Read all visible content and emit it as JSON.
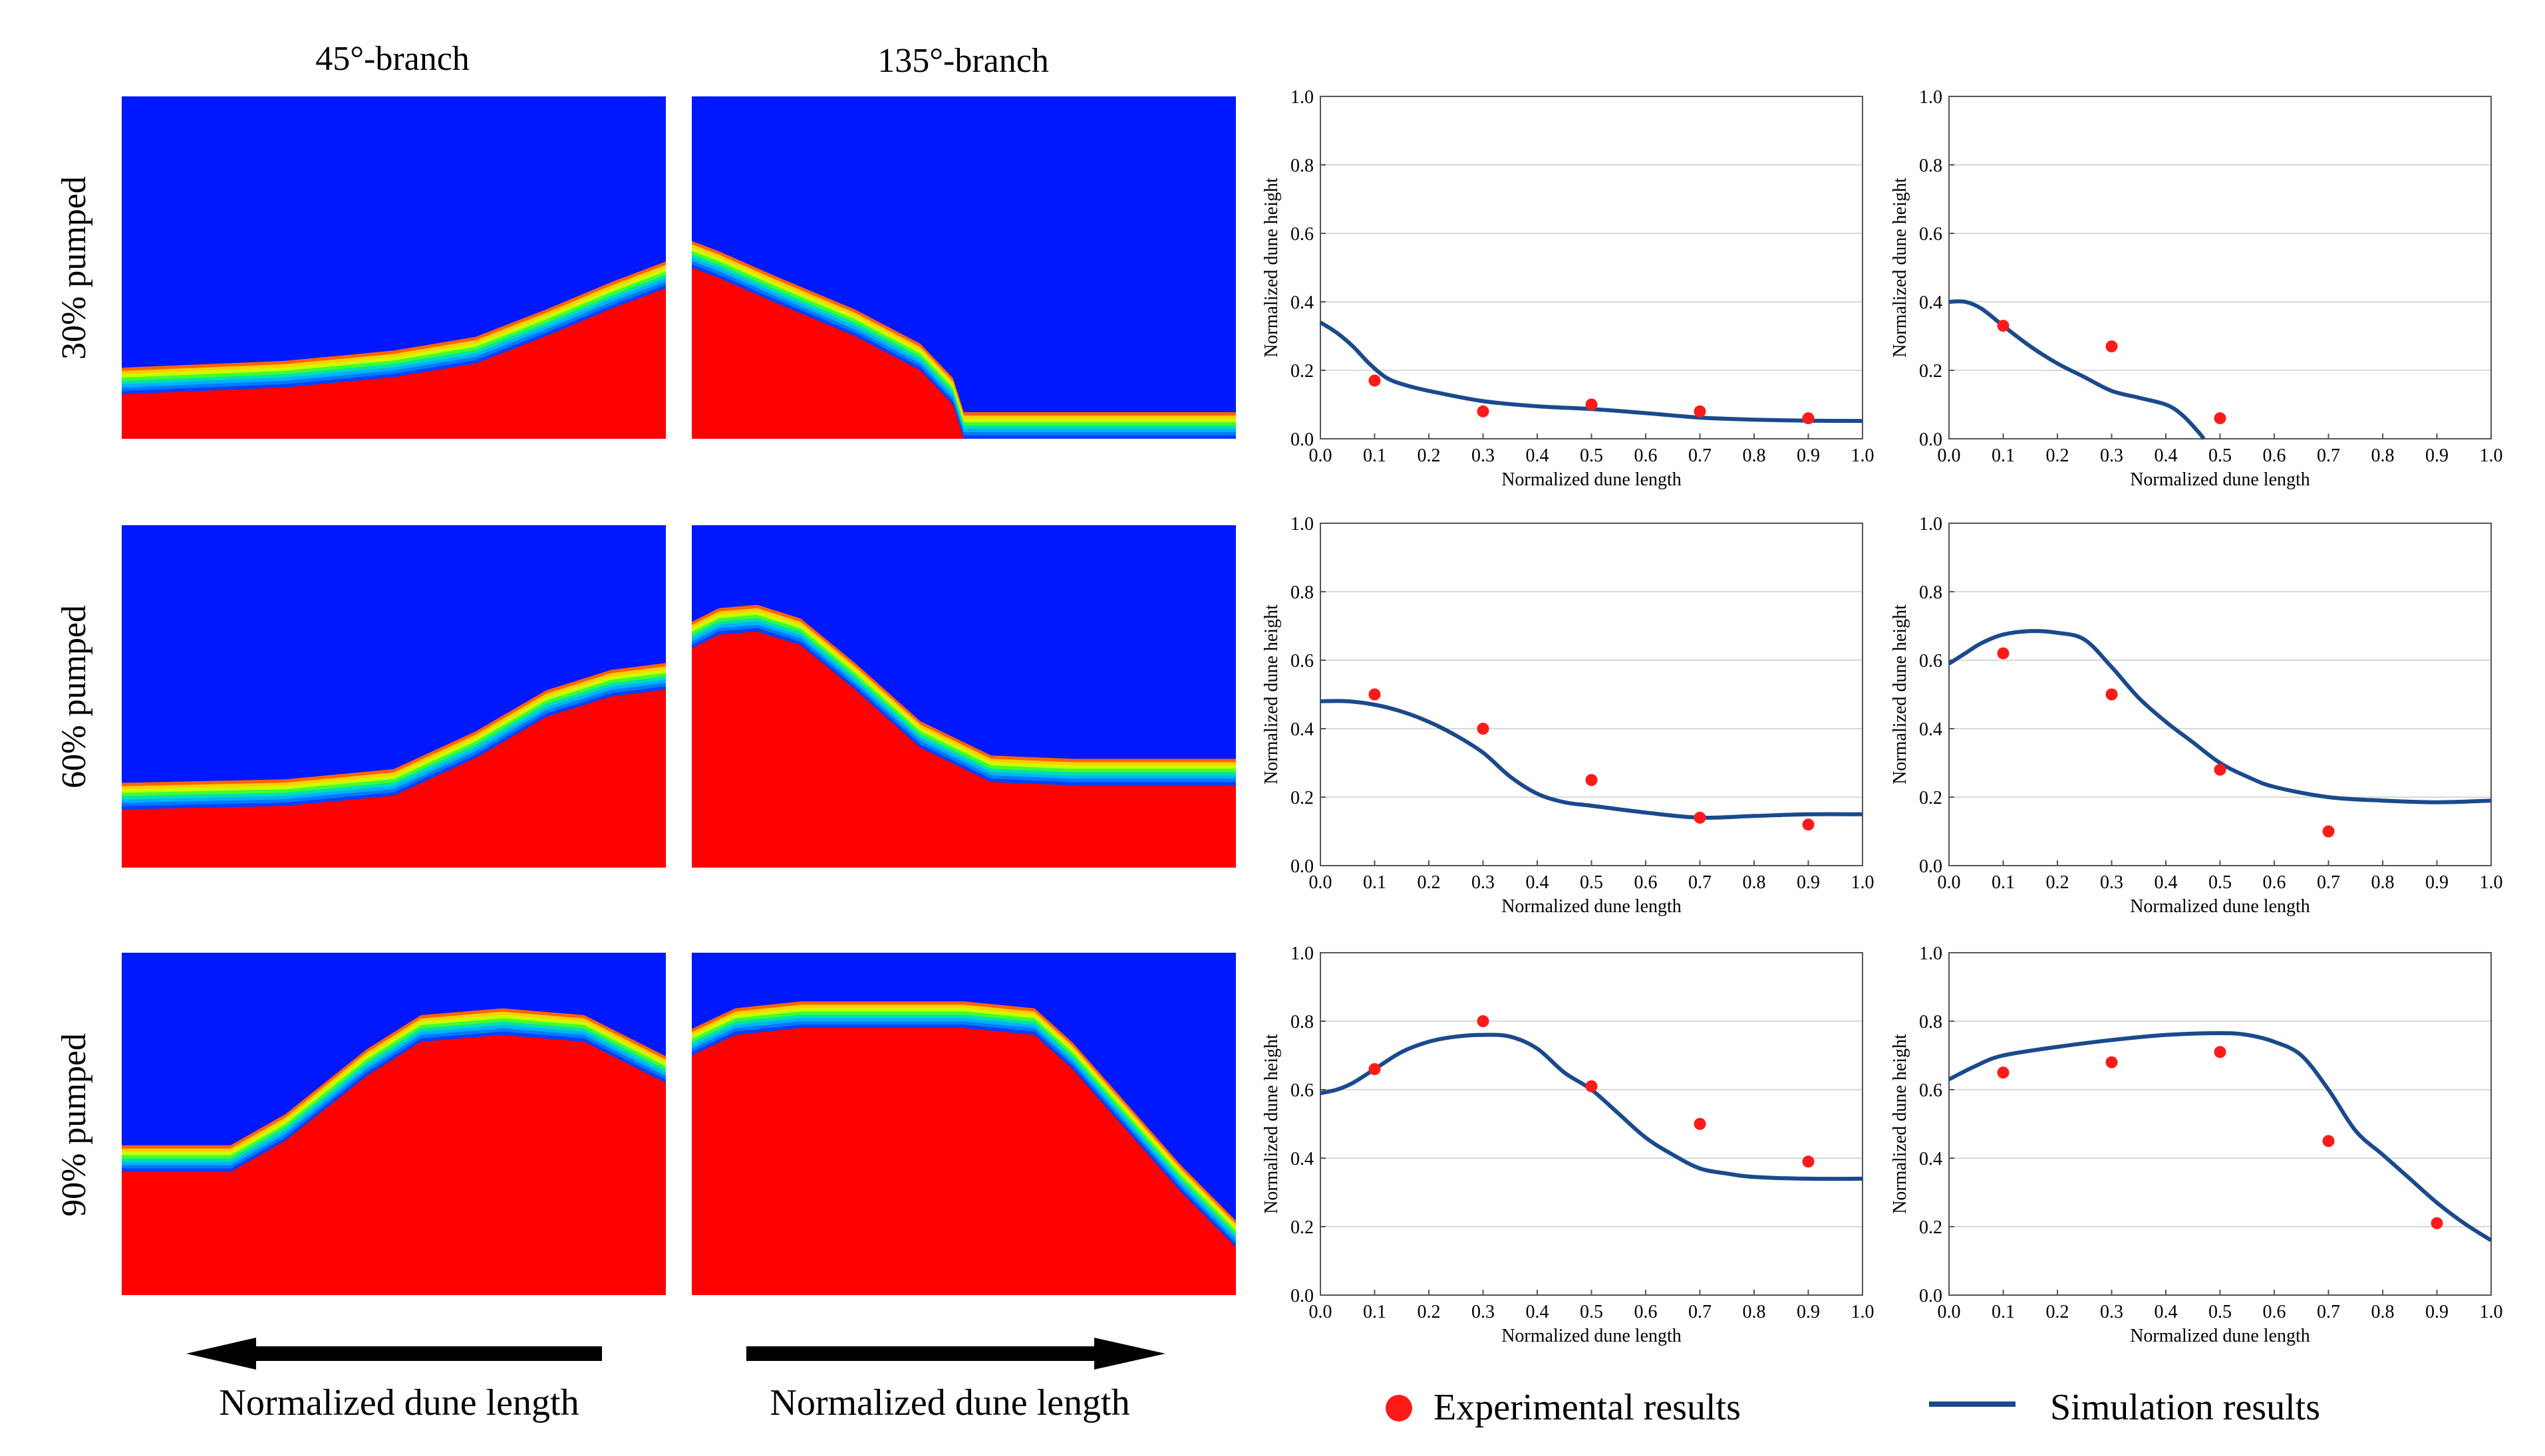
{
  "figure": {
    "column_headers": [
      "45°-branch",
      "135°-branch"
    ],
    "row_labels": [
      "30% pumped",
      "60% pumped",
      "90% pumped"
    ],
    "arrow_captions": [
      "Normalized dune length",
      "Normalized dune length"
    ],
    "arrow_directions": [
      "left",
      "right"
    ],
    "colors": {
      "sediment": "#ff0000",
      "water": "#0018ff",
      "interface": [
        "#ff6400",
        "#ffd000",
        "#c8ff00",
        "#40ff30",
        "#00e0b0",
        "#00b0ff",
        "#0078ff",
        "#0040ff"
      ],
      "experimental": "#ff1a1a",
      "simulation": "#1a4a8c",
      "grid": "#d9d9d9"
    },
    "legend": {
      "experimental": "Experimental results",
      "simulation": "Simulation results"
    }
  },
  "contour_profiles": [
    {
      "name": "45-30",
      "points": [
        [
          0,
          0.13
        ],
        [
          0.3,
          0.15
        ],
        [
          0.5,
          0.18
        ],
        [
          0.65,
          0.22
        ],
        [
          0.78,
          0.3
        ],
        [
          0.9,
          0.38
        ],
        [
          1,
          0.44
        ]
      ]
    },
    {
      "name": "135-30",
      "points": [
        [
          0,
          0.5
        ],
        [
          0.05,
          0.47
        ],
        [
          0.15,
          0.4
        ],
        [
          0.3,
          0.3
        ],
        [
          0.42,
          0.2
        ],
        [
          0.48,
          0.1
        ],
        [
          0.5,
          0.0
        ],
        [
          1,
          0.0
        ]
      ]
    },
    {
      "name": "45-60",
      "points": [
        [
          0,
          0.17
        ],
        [
          0.3,
          0.18
        ],
        [
          0.5,
          0.21
        ],
        [
          0.65,
          0.32
        ],
        [
          0.78,
          0.44
        ],
        [
          0.9,
          0.5
        ],
        [
          1,
          0.52
        ]
      ]
    },
    {
      "name": "135-60",
      "points": [
        [
          0,
          0.64
        ],
        [
          0.05,
          0.68
        ],
        [
          0.12,
          0.69
        ],
        [
          0.2,
          0.65
        ],
        [
          0.3,
          0.52
        ],
        [
          0.42,
          0.35
        ],
        [
          0.55,
          0.25
        ],
        [
          0.7,
          0.24
        ],
        [
          1,
          0.24
        ]
      ]
    },
    {
      "name": "45-90",
      "points": [
        [
          0,
          0.36
        ],
        [
          0.2,
          0.36
        ],
        [
          0.3,
          0.45
        ],
        [
          0.45,
          0.64
        ],
        [
          0.55,
          0.74
        ],
        [
          0.7,
          0.76
        ],
        [
          0.85,
          0.74
        ],
        [
          0.95,
          0.66
        ],
        [
          1,
          0.62
        ]
      ]
    },
    {
      "name": "135-90",
      "points": [
        [
          0,
          0.7
        ],
        [
          0.08,
          0.76
        ],
        [
          0.2,
          0.78
        ],
        [
          0.5,
          0.78
        ],
        [
          0.63,
          0.76
        ],
        [
          0.7,
          0.66
        ],
        [
          0.8,
          0.48
        ],
        [
          0.9,
          0.3
        ],
        [
          1,
          0.14
        ]
      ]
    }
  ],
  "chart_data": [
    {
      "type": "line",
      "name": "45-30",
      "xlabel": "Normalized dune length",
      "ylabel": "Normalized dune height",
      "xlim": [
        0,
        1
      ],
      "ylim": [
        0,
        1
      ],
      "xticks": [
        "0.0",
        "0.1",
        "0.2",
        "0.3",
        "0.4",
        "0.5",
        "0.6",
        "0.7",
        "0.8",
        "0.9",
        "1.0"
      ],
      "yticks": [
        "0.0",
        "0.2",
        "0.4",
        "0.6",
        "0.8",
        "1.0"
      ],
      "experimental": [
        [
          0.1,
          0.17
        ],
        [
          0.3,
          0.08
        ],
        [
          0.5,
          0.1
        ],
        [
          0.7,
          0.08
        ],
        [
          0.9,
          0.06
        ]
      ],
      "simulation": [
        [
          0,
          0.34
        ],
        [
          0.03,
          0.31
        ],
        [
          0.06,
          0.27
        ],
        [
          0.09,
          0.22
        ],
        [
          0.12,
          0.18
        ],
        [
          0.15,
          0.16
        ],
        [
          0.2,
          0.14
        ],
        [
          0.3,
          0.11
        ],
        [
          0.4,
          0.095
        ],
        [
          0.5,
          0.087
        ],
        [
          0.6,
          0.075
        ],
        [
          0.7,
          0.062
        ],
        [
          0.8,
          0.056
        ],
        [
          0.9,
          0.053
        ],
        [
          1,
          0.052
        ]
      ]
    },
    {
      "type": "line",
      "name": "135-30",
      "xlabel": "Normalized dune length",
      "ylabel": "Normalized dune height",
      "xlim": [
        0,
        1
      ],
      "ylim": [
        0,
        1
      ],
      "xticks": [
        "0.0",
        "0.1",
        "0.2",
        "0.3",
        "0.4",
        "0.5",
        "0.6",
        "0.7",
        "0.8",
        "0.9",
        "1.0"
      ],
      "yticks": [
        "0.0",
        "0.2",
        "0.4",
        "0.6",
        "0.8",
        "1.0"
      ],
      "experimental": [
        [
          0.1,
          0.33
        ],
        [
          0.3,
          0.27
        ],
        [
          0.5,
          0.06
        ]
      ],
      "simulation": [
        [
          0,
          0.4
        ],
        [
          0.03,
          0.4
        ],
        [
          0.06,
          0.38
        ],
        [
          0.1,
          0.33
        ],
        [
          0.15,
          0.27
        ],
        [
          0.2,
          0.22
        ],
        [
          0.25,
          0.18
        ],
        [
          0.3,
          0.14
        ],
        [
          0.35,
          0.12
        ],
        [
          0.4,
          0.1
        ],
        [
          0.43,
          0.07
        ],
        [
          0.46,
          0.02
        ],
        [
          0.47,
          0.0
        ]
      ]
    },
    {
      "type": "line",
      "name": "45-60",
      "xlabel": "Normalized dune length",
      "ylabel": "Normalized dune height",
      "xlim": [
        0,
        1
      ],
      "ylim": [
        0,
        1
      ],
      "xticks": [
        "0.0",
        "0.1",
        "0.2",
        "0.3",
        "0.4",
        "0.5",
        "0.6",
        "0.7",
        "0.8",
        "0.9",
        "1.0"
      ],
      "yticks": [
        "0.0",
        "0.2",
        "0.4",
        "0.6",
        "0.8",
        "1.0"
      ],
      "experimental": [
        [
          0.1,
          0.5
        ],
        [
          0.3,
          0.4
        ],
        [
          0.5,
          0.25
        ],
        [
          0.7,
          0.14
        ],
        [
          0.9,
          0.12
        ]
      ],
      "simulation": [
        [
          0,
          0.48
        ],
        [
          0.05,
          0.48
        ],
        [
          0.1,
          0.47
        ],
        [
          0.15,
          0.45
        ],
        [
          0.2,
          0.42
        ],
        [
          0.25,
          0.38
        ],
        [
          0.3,
          0.33
        ],
        [
          0.35,
          0.26
        ],
        [
          0.4,
          0.21
        ],
        [
          0.45,
          0.185
        ],
        [
          0.5,
          0.175
        ],
        [
          0.6,
          0.155
        ],
        [
          0.7,
          0.14
        ],
        [
          0.8,
          0.145
        ],
        [
          0.9,
          0.15
        ],
        [
          1,
          0.15
        ]
      ]
    },
    {
      "type": "line",
      "name": "135-60",
      "xlabel": "Normalized dune length",
      "ylabel": "Normalized dune height",
      "xlim": [
        0,
        1
      ],
      "ylim": [
        0,
        1
      ],
      "xticks": [
        "0.0",
        "0.1",
        "0.2",
        "0.3",
        "0.4",
        "0.5",
        "0.6",
        "0.7",
        "0.8",
        "0.9",
        "1.0"
      ],
      "yticks": [
        "0.0",
        "0.2",
        "0.4",
        "0.6",
        "0.8",
        "1.0"
      ],
      "experimental": [
        [
          0.1,
          0.62
        ],
        [
          0.3,
          0.5
        ],
        [
          0.5,
          0.28
        ],
        [
          0.7,
          0.1
        ]
      ],
      "simulation": [
        [
          0,
          0.59
        ],
        [
          0.03,
          0.62
        ],
        [
          0.06,
          0.65
        ],
        [
          0.1,
          0.675
        ],
        [
          0.15,
          0.685
        ],
        [
          0.2,
          0.68
        ],
        [
          0.25,
          0.66
        ],
        [
          0.3,
          0.58
        ],
        [
          0.35,
          0.49
        ],
        [
          0.4,
          0.42
        ],
        [
          0.45,
          0.36
        ],
        [
          0.5,
          0.3
        ],
        [
          0.55,
          0.26
        ],
        [
          0.6,
          0.23
        ],
        [
          0.7,
          0.2
        ],
        [
          0.8,
          0.19
        ],
        [
          0.9,
          0.185
        ],
        [
          1,
          0.19
        ]
      ]
    },
    {
      "type": "line",
      "name": "45-90",
      "xlabel": "Normalized dune length",
      "ylabel": "Normalized dune height",
      "xlim": [
        0,
        1
      ],
      "ylim": [
        0,
        1
      ],
      "xticks": [
        "0.0",
        "0.1",
        "0.2",
        "0.3",
        "0.4",
        "0.5",
        "0.6",
        "0.7",
        "0.8",
        "0.9",
        "1.0"
      ],
      "yticks": [
        "0.0",
        "0.2",
        "0.4",
        "0.6",
        "0.8",
        "1.0"
      ],
      "experimental": [
        [
          0.1,
          0.66
        ],
        [
          0.3,
          0.8
        ],
        [
          0.5,
          0.61
        ],
        [
          0.7,
          0.5
        ],
        [
          0.9,
          0.39
        ]
      ],
      "simulation": [
        [
          0,
          0.59
        ],
        [
          0.03,
          0.6
        ],
        [
          0.06,
          0.62
        ],
        [
          0.1,
          0.66
        ],
        [
          0.15,
          0.71
        ],
        [
          0.2,
          0.74
        ],
        [
          0.25,
          0.755
        ],
        [
          0.3,
          0.76
        ],
        [
          0.35,
          0.755
        ],
        [
          0.4,
          0.72
        ],
        [
          0.45,
          0.65
        ],
        [
          0.5,
          0.6
        ],
        [
          0.55,
          0.53
        ],
        [
          0.6,
          0.46
        ],
        [
          0.65,
          0.41
        ],
        [
          0.7,
          0.37
        ],
        [
          0.75,
          0.355
        ],
        [
          0.8,
          0.345
        ],
        [
          0.9,
          0.34
        ],
        [
          1,
          0.34
        ]
      ]
    },
    {
      "type": "line",
      "name": "135-90",
      "xlabel": "Normalized dune length",
      "ylabel": "Normalized dune height",
      "xlim": [
        0,
        1
      ],
      "ylim": [
        0,
        1
      ],
      "xticks": [
        "0.0",
        "0.1",
        "0.2",
        "0.3",
        "0.4",
        "0.5",
        "0.6",
        "0.7",
        "0.8",
        "0.9",
        "1.0"
      ],
      "yticks": [
        "0.0",
        "0.2",
        "0.4",
        "0.6",
        "0.8",
        "1.0"
      ],
      "experimental": [
        [
          0.1,
          0.65
        ],
        [
          0.3,
          0.68
        ],
        [
          0.5,
          0.71
        ],
        [
          0.7,
          0.45
        ],
        [
          0.9,
          0.21
        ]
      ],
      "simulation": [
        [
          0,
          0.63
        ],
        [
          0.05,
          0.67
        ],
        [
          0.1,
          0.7
        ],
        [
          0.2,
          0.725
        ],
        [
          0.3,
          0.745
        ],
        [
          0.4,
          0.76
        ],
        [
          0.5,
          0.765
        ],
        [
          0.55,
          0.76
        ],
        [
          0.6,
          0.74
        ],
        [
          0.65,
          0.7
        ],
        [
          0.7,
          0.6
        ],
        [
          0.75,
          0.48
        ],
        [
          0.8,
          0.41
        ],
        [
          0.85,
          0.34
        ],
        [
          0.9,
          0.27
        ],
        [
          0.95,
          0.21
        ],
        [
          1,
          0.16
        ]
      ]
    }
  ]
}
